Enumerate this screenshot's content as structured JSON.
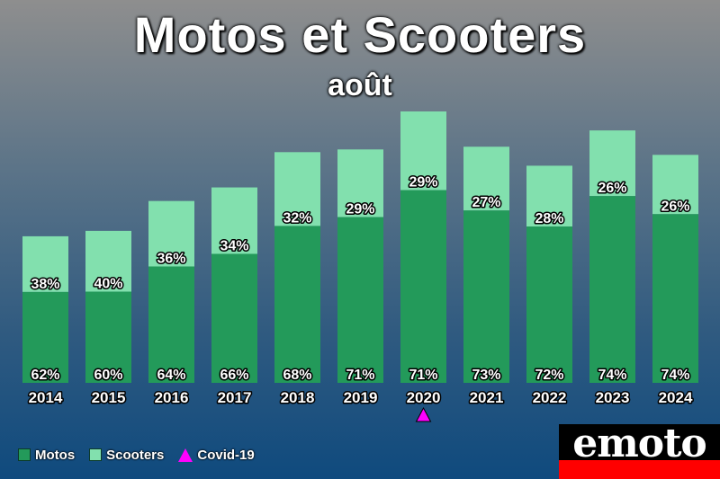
{
  "title": "Motos et Scooters",
  "subtitle": "août",
  "legend": {
    "motos": "Motos",
    "scooters": "Scooters",
    "covid": "Covid-19"
  },
  "colors": {
    "motos": "#239a5a",
    "scooters": "#82e0ae",
    "covid": "#ff00ff",
    "logo_bg": "#ff0000"
  },
  "logo": {
    "text": "emoto"
  },
  "chart_data": {
    "type": "bar",
    "stacked": true,
    "title": "Motos et Scooters",
    "subtitle": "août",
    "categories": [
      "2014",
      "2015",
      "2016",
      "2017",
      "2018",
      "2019",
      "2020",
      "2021",
      "2022",
      "2023",
      "2024"
    ],
    "totals_relative": [
      54,
      56,
      67,
      72,
      85,
      86,
      100,
      87,
      80,
      93,
      84
    ],
    "series": [
      {
        "name": "Motos",
        "values": [
          62,
          60,
          64,
          66,
          68,
          71,
          71,
          73,
          72,
          74,
          74
        ],
        "labels": [
          "62%",
          "60%",
          "64%",
          "66%",
          "68%",
          "71%",
          "71%",
          "73%",
          "72%",
          "74%",
          "74%"
        ]
      },
      {
        "name": "Scooters",
        "values": [
          38,
          40,
          36,
          34,
          32,
          29,
          29,
          27,
          28,
          26,
          26
        ],
        "labels": [
          "38%",
          "40%",
          "36%",
          "34%",
          "32%",
          "29%",
          "29%",
          "27%",
          "28%",
          "26%",
          "26%"
        ]
      }
    ],
    "marker": {
      "name": "Covid-19",
      "category": "2020"
    },
    "legend_position": "bottom-left",
    "grid": false
  }
}
